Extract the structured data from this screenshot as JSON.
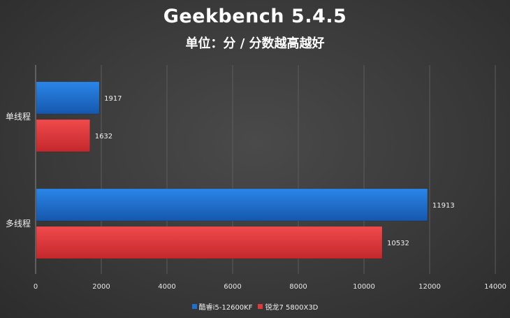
{
  "colors": {
    "series_blue": "#1f6fd0",
    "series_red": "#e0393c",
    "grid": "#5c5c5c"
  },
  "chart_data": {
    "type": "bar",
    "orientation": "horizontal",
    "title": "Geekbench 5.4.5",
    "subtitle": "单位：分 / 分数越高越好",
    "categories": [
      "单线程",
      "多线程"
    ],
    "series": [
      {
        "name": "酷睿i5-12600KF",
        "color": "#1f6fd0",
        "values": [
          1917,
          11913
        ]
      },
      {
        "name": "锐龙7 5800X3D",
        "color": "#e0393c",
        "values": [
          1632,
          10532
        ]
      }
    ],
    "xlim": [
      0,
      14000
    ],
    "xticks": [
      "0",
      "2000",
      "4000",
      "6000",
      "8000",
      "10000",
      "12000",
      "14000"
    ],
    "grid": true,
    "legend_position": "bottom"
  }
}
